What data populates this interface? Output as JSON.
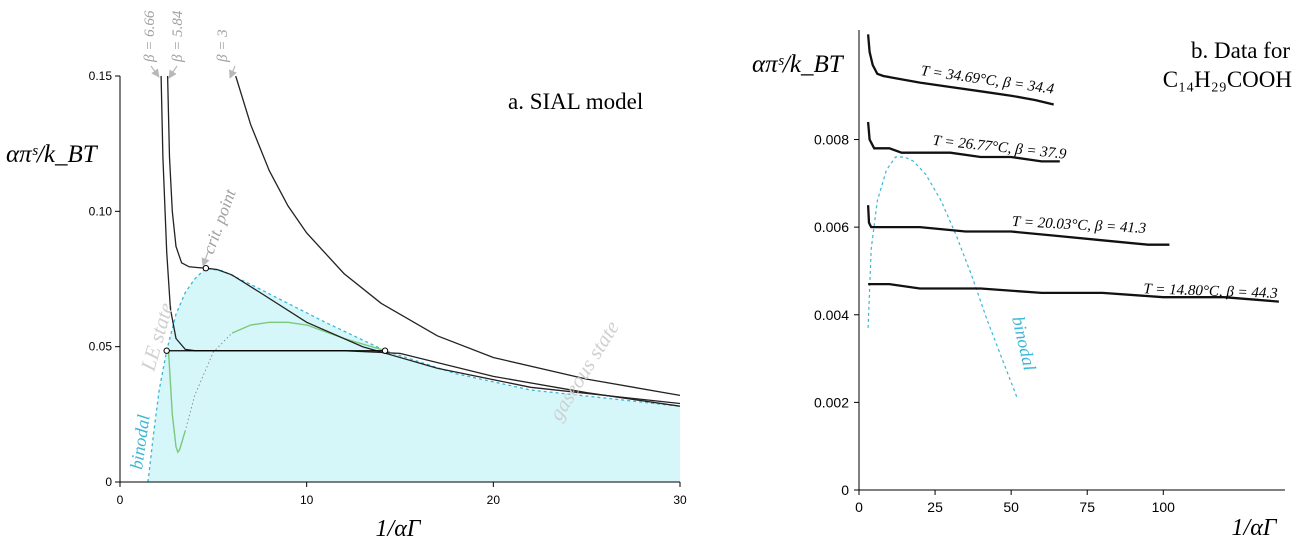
{
  "chart_data": [
    {
      "type": "line",
      "title": "a. SIAL model",
      "xlabel": "1/αΓ",
      "ylabel": "απˢ/k_BT",
      "xlim": [
        0,
        30
      ],
      "ylim": [
        0,
        0.15
      ],
      "xticks": [
        "0",
        "10",
        "20",
        "30"
      ],
      "yticks": [
        "0",
        "0.05",
        "0.10",
        "0.15"
      ],
      "grid": false,
      "colors": {
        "curves": "#222222",
        "region": "#d6f7fa",
        "binodal": "#3ab7d6",
        "spinodal": "#7dc87d",
        "annotation": "#b8b8b8"
      },
      "series": [
        {
          "name": "β = 6.66",
          "x": [
            2.2,
            2.3,
            2.5,
            2.7,
            3.0,
            3.5,
            4.0,
            4.6,
            5.5,
            7.0,
            9.0,
            12,
            15,
            20,
            25,
            30
          ],
          "y": [
            0.15,
            0.12,
            0.085,
            0.064,
            0.053,
            0.049,
            0.0485,
            0.0485,
            0.0485,
            0.0485,
            0.0485,
            0.0485,
            0.0475,
            0.039,
            0.033,
            0.028
          ]
        },
        {
          "name": "β = 5.84",
          "x": [
            2.55,
            2.65,
            2.8,
            3.0,
            3.3,
            3.7,
            4.2,
            4.6,
            5.2,
            6.0,
            7.5,
            10,
            13,
            17,
            22,
            30
          ],
          "y": [
            0.15,
            0.12,
            0.1,
            0.087,
            0.081,
            0.0795,
            0.0792,
            0.079,
            0.0785,
            0.0765,
            0.07,
            0.059,
            0.05,
            0.042,
            0.035,
            0.029
          ]
        },
        {
          "name": "β = 3",
          "x": [
            6.2,
            7,
            8,
            9,
            10,
            12,
            14,
            17,
            20,
            25,
            30
          ],
          "y": [
            0.15,
            0.132,
            0.115,
            0.102,
            0.092,
            0.077,
            0.066,
            0.054,
            0.046,
            0.038,
            0.032
          ]
        }
      ],
      "tie_line": {
        "x": [
          2.5,
          14.2
        ],
        "y": [
          0.0485,
          0.0485
        ]
      },
      "critical_point": {
        "x": 4.6,
        "y": 0.079
      },
      "binodal": {
        "x": [
          1.5,
          1.8,
          2.1,
          2.5,
          3,
          3.5,
          4,
          4.6,
          5.5,
          7,
          9,
          11,
          14.2,
          18,
          22,
          26,
          30
        ],
        "y": [
          0.0,
          0.018,
          0.034,
          0.0485,
          0.062,
          0.07,
          0.075,
          0.079,
          0.078,
          0.073,
          0.066,
          0.059,
          0.0485,
          0.04,
          0.034,
          0.031,
          0.028
        ]
      },
      "spinodal": {
        "x": [
          2.6,
          2.8,
          3.0,
          3.1,
          3.2,
          3.5,
          4,
          5,
          6,
          7,
          8,
          9,
          10,
          12,
          14.2
        ],
        "y": [
          0.0485,
          0.025,
          0.013,
          0.011,
          0.012,
          0.019,
          0.032,
          0.048,
          0.055,
          0.058,
          0.059,
          0.059,
          0.058,
          0.053,
          0.0485
        ]
      },
      "annotations": [
        "crit. point",
        "LE state",
        "gaseous state",
        "binodal"
      ],
      "beta_labels": [
        "β = 6.66",
        "β = 5.84",
        "β = 3"
      ]
    },
    {
      "type": "line",
      "title": "b. Data for C₁₄H₂₉COOH",
      "title_line1": "b. Data for",
      "title_line2": "C₁₄H₂₉COOH",
      "xlabel": "1/αΓ",
      "ylabel": "απˢ/k_BT",
      "xlim": [
        0,
        140
      ],
      "ylim": [
        0,
        0.0105
      ],
      "xticks": [
        "0",
        "25",
        "50",
        "75",
        "100"
      ],
      "yticks": [
        "0",
        "0.002",
        "0.004",
        "0.006",
        "0.008"
      ],
      "grid": false,
      "series": [
        {
          "name": "T = 34.69°C, β = 34.4",
          "x": [
            3,
            3.5,
            4.5,
            6,
            8,
            12,
            20,
            30,
            40,
            50,
            58,
            64
          ],
          "y": [
            0.0104,
            0.01,
            0.0097,
            0.0095,
            0.00945,
            0.0094,
            0.0093,
            0.0092,
            0.0091,
            0.009,
            0.0089,
            0.0088
          ]
        },
        {
          "name": "T = 26.77°C, β = 37.9",
          "x": [
            3,
            3.5,
            5,
            7,
            10,
            14,
            20,
            30,
            40,
            50,
            60,
            66
          ],
          "y": [
            0.0084,
            0.008,
            0.0078,
            0.0078,
            0.0078,
            0.0077,
            0.0077,
            0.0077,
            0.0076,
            0.0076,
            0.0075,
            0.0075
          ]
        },
        {
          "name": "T = 20.03°C, β = 41.3",
          "x": [
            3,
            3.3,
            4,
            6,
            10,
            20,
            35,
            50,
            65,
            80,
            95,
            102
          ],
          "y": [
            0.0065,
            0.0061,
            0.006,
            0.006,
            0.006,
            0.006,
            0.0059,
            0.0059,
            0.0058,
            0.0057,
            0.0056,
            0.0056
          ]
        },
        {
          "name": "T = 14.80°C, β = 44.3",
          "x": [
            3,
            10,
            20,
            40,
            60,
            80,
            100,
            120,
            138
          ],
          "y": [
            0.0047,
            0.0047,
            0.0046,
            0.0046,
            0.0045,
            0.0045,
            0.0044,
            0.0044,
            0.0043
          ]
        }
      ],
      "binodal": {
        "x": [
          3,
          4,
          6,
          9,
          12,
          15,
          18,
          22,
          27,
          32,
          37,
          42,
          47,
          52
        ],
        "y": [
          0.0037,
          0.0055,
          0.0066,
          0.0073,
          0.0076,
          0.0076,
          0.0075,
          0.0072,
          0.0066,
          0.0058,
          0.0049,
          0.0039,
          0.003,
          0.0021
        ]
      },
      "annotations": [
        "binodal"
      ]
    }
  ]
}
